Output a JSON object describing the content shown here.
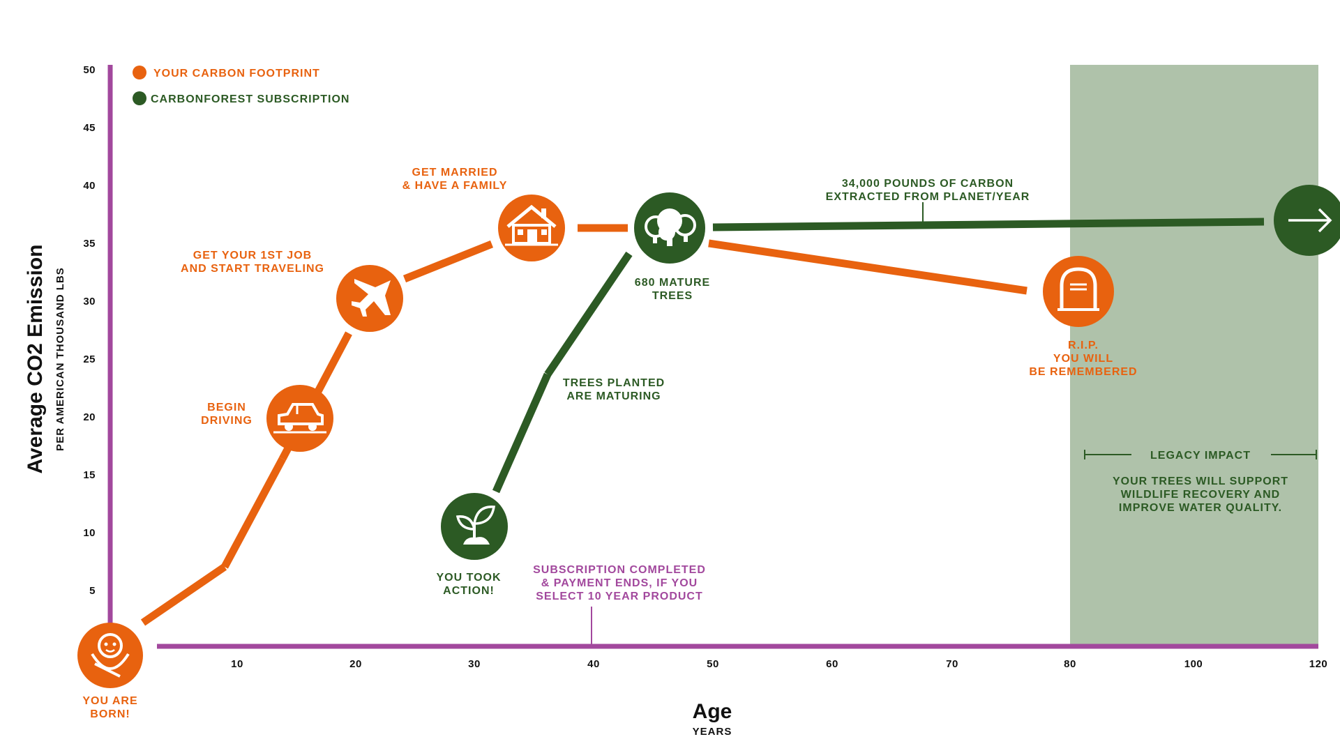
{
  "colors": {
    "orange": "#e8620f",
    "green": "#2c5a24",
    "purple": "#a2489d",
    "legacy_bg": "#afc2aa"
  },
  "chart_data": {
    "type": "line",
    "xlabel": "Age",
    "xlabel_sub": "YEARS",
    "ylabel": "Average CO2 Emission",
    "ylabel_sub": "PER AMERICAN THOUSAND LBS",
    "xlim": [
      0,
      120
    ],
    "ylim": [
      0,
      50
    ],
    "x_ticks": [
      10,
      20,
      30,
      40,
      50,
      60,
      70,
      80,
      100,
      120
    ],
    "y_ticks": [
      5,
      10,
      15,
      20,
      25,
      30,
      35,
      40,
      45,
      50
    ],
    "legend": [
      {
        "label": "YOUR CARBON FOOTPRINT",
        "color": "#e8620f"
      },
      {
        "label": "CARBONFOREST SUBSCRIPTION",
        "color": "#2c5a24"
      }
    ],
    "series": [
      {
        "name": "YOUR CARBON FOOTPRINT",
        "color": "#e8620f",
        "points": [
          {
            "x": 0,
            "y": 0
          },
          {
            "x": 9,
            "y": 7.2
          },
          {
            "x": 15,
            "y": 20
          },
          {
            "x": 21,
            "y": 30.5
          },
          {
            "x": 35,
            "y": 36.5
          },
          {
            "x": 46,
            "y": 36.5
          },
          {
            "x": 75,
            "y": 31
          }
        ]
      },
      {
        "name": "CARBONFOREST SUBSCRIPTION",
        "color": "#2c5a24",
        "points": [
          {
            "x": 29,
            "y": 10.5
          },
          {
            "x": 36,
            "y": 24
          },
          {
            "x": 46,
            "y": 36.5
          },
          {
            "x": 115,
            "y": 37
          }
        ]
      }
    ],
    "milestones": [
      {
        "id": "born",
        "icon": "baby-icon",
        "x": 0,
        "y": 0,
        "color": "#e8620f",
        "label": [
          "YOU ARE",
          "BORN!"
        ],
        "label_color": "#e8620f"
      },
      {
        "id": "driving",
        "icon": "car-icon",
        "x": 15,
        "y": 20,
        "color": "#e8620f",
        "label": [
          "BEGIN",
          "DRIVING"
        ],
        "label_color": "#e8620f"
      },
      {
        "id": "job",
        "icon": "airplane-icon",
        "x": 21,
        "y": 30.5,
        "color": "#e8620f",
        "label": [
          "GET YOUR 1ST JOB",
          "AND START TRAVELING"
        ],
        "label_color": "#e8620f"
      },
      {
        "id": "family",
        "icon": "house-icon",
        "x": 35,
        "y": 36.5,
        "color": "#e8620f",
        "label": [
          "GET MARRIED",
          "& HAVE A FAMILY"
        ],
        "label_color": "#e8620f"
      },
      {
        "id": "action",
        "icon": "sprout-icon",
        "x": 29,
        "y": 10.5,
        "color": "#2c5a24",
        "label": [
          "YOU TOOK",
          "ACTION!"
        ],
        "label_color": "#2c5a24"
      },
      {
        "id": "mature",
        "icon": "trees-icon",
        "x": 46,
        "y": 36.5,
        "color": "#2c5a24",
        "label": [
          "680 MATURE",
          "TREES"
        ],
        "label_color": "#2c5a24"
      },
      {
        "id": "rip",
        "icon": "tombstone-icon",
        "x": 81,
        "y": 31,
        "color": "#e8620f",
        "label": [
          "R.I.P.",
          "YOU WILL",
          "BE REMEMBERED"
        ],
        "label_color": "#e8620f"
      },
      {
        "id": "future",
        "icon": "arrow-right-icon",
        "x": 120,
        "y": 37,
        "color": "#2c5a24",
        "label": [],
        "label_color": "#2c5a24"
      }
    ],
    "annotations": {
      "trees_planted": [
        "TREES PLANTED",
        "ARE MATURING"
      ],
      "extracted": [
        "34,000 POUNDS OF CARBON",
        "EXTRACTED FROM PLANET/YEAR"
      ],
      "subscription": [
        "SUBSCRIPTION COMPLETED",
        "& PAYMENT ENDS, IF YOU",
        "SELECT 10 YEAR PRODUCT"
      ],
      "subscription_x": 40,
      "legacy_title": "LEGACY IMPACT",
      "legacy_text": [
        "YOUR TREES WILL SUPPORT",
        "WILDLIFE RECOVERY AND",
        "IMPROVE WATER QUALITY."
      ],
      "legacy_range": [
        80,
        120
      ]
    }
  }
}
